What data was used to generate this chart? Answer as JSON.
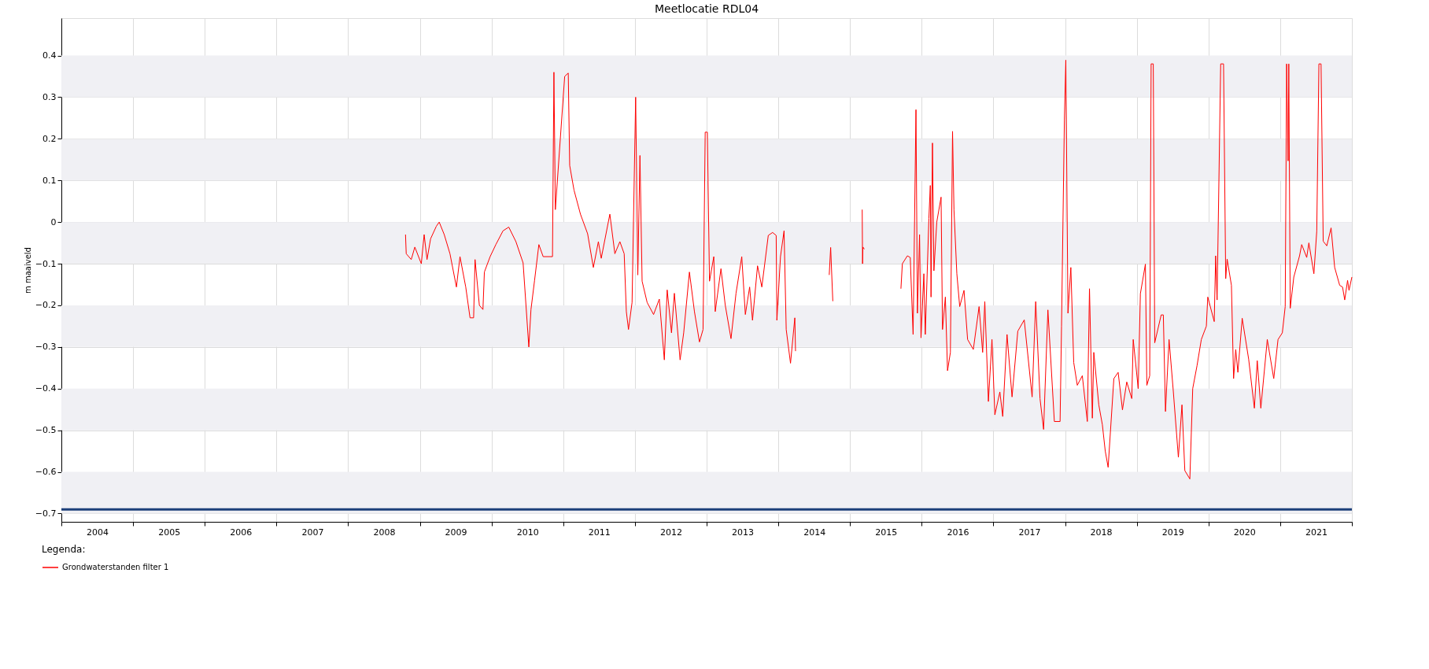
{
  "chart_data": {
    "type": "line",
    "title": "Meetlocatie RDL04",
    "ylabel": "m maaiveld",
    "legend_title": "Legenda:",
    "legend": "bottom left",
    "grid": true,
    "marker": "none",
    "line_style": "solid",
    "xlim": [
      2004,
      2022
    ],
    "xticks": [
      {
        "value": 2004,
        "label": null
      },
      {
        "value": 2004.5,
        "label": "2004"
      },
      {
        "value": 2005,
        "label": null
      },
      {
        "value": 2005.5,
        "label": "2005"
      },
      {
        "value": 2006,
        "label": null
      },
      {
        "value": 2006.5,
        "label": "2006"
      },
      {
        "value": 2007,
        "label": null
      },
      {
        "value": 2007.5,
        "label": "2007"
      },
      {
        "value": 2008,
        "label": null
      },
      {
        "value": 2008.5,
        "label": "2008"
      },
      {
        "value": 2009,
        "label": null
      },
      {
        "value": 2009.5,
        "label": "2009"
      },
      {
        "value": 2010,
        "label": null
      },
      {
        "value": 2010.5,
        "label": "2010"
      },
      {
        "value": 2011,
        "label": null
      },
      {
        "value": 2011.5,
        "label": "2011"
      },
      {
        "value": 2012,
        "label": null
      },
      {
        "value": 2012.5,
        "label": "2012"
      },
      {
        "value": 2013,
        "label": null
      },
      {
        "value": 2013.5,
        "label": "2013"
      },
      {
        "value": 2014,
        "label": null
      },
      {
        "value": 2014.5,
        "label": "2014"
      },
      {
        "value": 2015,
        "label": null
      },
      {
        "value": 2015.5,
        "label": "2015"
      },
      {
        "value": 2016,
        "label": null
      },
      {
        "value": 2016.5,
        "label": "2016"
      },
      {
        "value": 2017,
        "label": null
      },
      {
        "value": 2017.5,
        "label": "2017"
      },
      {
        "value": 2018,
        "label": null
      },
      {
        "value": 2018.5,
        "label": "2018"
      },
      {
        "value": 2019,
        "label": null
      },
      {
        "value": 2019.5,
        "label": "2019"
      },
      {
        "value": 2020,
        "label": null
      },
      {
        "value": 2020.5,
        "label": "2020"
      },
      {
        "value": 2021,
        "label": null
      },
      {
        "value": 2021.5,
        "label": "2021"
      },
      {
        "value": 2022,
        "label": null
      }
    ],
    "ylim": [
      -0.72,
      0.49
    ],
    "yticks": [
      -0.7,
      -0.6,
      -0.5,
      -0.4,
      -0.3,
      -0.2,
      -0.1,
      0,
      0.1,
      0.2,
      0.3,
      0.4
    ],
    "bands": [
      {
        "axis": "y",
        "from": 0.3,
        "to": 0.4,
        "color": "#f0f0f4"
      },
      {
        "axis": "y",
        "from": 0.1,
        "to": 0.2,
        "color": "#f0f0f4"
      },
      {
        "axis": "y",
        "from": -0.1,
        "to": 0,
        "color": "#f0f0f4"
      },
      {
        "axis": "y",
        "from": -0.3,
        "to": -0.2,
        "color": "#f0f0f4"
      },
      {
        "axis": "y",
        "from": -0.5,
        "to": -0.4,
        "color": "#f0f0f4"
      },
      {
        "axis": "y",
        "from": -0.7,
        "to": -0.6,
        "color": "#f0f0f4"
      }
    ],
    "ref_lines": [
      {
        "axis": "y",
        "value": -0.69,
        "color": "#1c3f7a",
        "line_style": "solid"
      }
    ],
    "series": [
      {
        "name": "Grondwaterstanden filter 1",
        "color": "#ff0000",
        "x": [
          2008.8,
          2008.81,
          2008.88,
          2008.93,
          2009.02,
          2009.06,
          2009.1,
          2009.15,
          2009.23,
          2009.27,
          2009.34,
          2009.42,
          2009.51,
          2009.56,
          2009.64,
          2009.7,
          2009.75,
          2009.77,
          2009.83,
          2009.88,
          2009.9,
          2009.98,
          2010.06,
          2010.16,
          2010.24,
          2010.34,
          2010.44,
          2010.52,
          2010.55,
          2010.6,
          2010.66,
          2010.72,
          2010.85,
          2010.87,
          2010.89,
          2011.02,
          2011.07,
          2011.09,
          2011.15,
          2011.24,
          2011.34,
          2011.42,
          2011.49,
          2011.53,
          2011.65,
          2011.72,
          2011.79,
          2011.85,
          2011.88,
          2011.91,
          2011.96,
          2012.01,
          2012.04,
          2012.07,
          2012.1,
          2012.17,
          2012.26,
          2012.34,
          2012.41,
          2012.45,
          2012.51,
          2012.55,
          2012.63,
          2012.68,
          2012.76,
          2012.83,
          2012.9,
          2012.95,
          2012.98,
          2013.01,
          2013.04,
          2013.1,
          2013.12,
          2013.2,
          2013.26,
          2013.34,
          2013.41,
          2013.49,
          2013.54,
          2013.6,
          2013.64,
          2013.71,
          2013.77,
          2013.86,
          2013.92,
          2013.97,
          2013.98,
          2014.03,
          2014.08,
          2014.11,
          2014.17,
          2014.23,
          2014.24,
          2014.5,
          2014.71,
          2014.73,
          2014.76,
          2014.95,
          2015.17,
          2015.175,
          2015.18,
          2015.2,
          2015.45,
          2015.71,
          2015.73,
          2015.8,
          2015.84,
          2015.88,
          2015.92,
          2015.94,
          2015.97,
          2015.99,
          2016.03,
          2016.05,
          2016.1,
          2016.12,
          2016.13,
          2016.15,
          2016.17,
          2016.21,
          2016.27,
          2016.29,
          2016.33,
          2016.36,
          2016.4,
          2016.43,
          2016.45,
          2016.49,
          2016.53,
          2016.59,
          2016.64,
          2016.72,
          2016.8,
          2016.85,
          2016.88,
          2016.93,
          2016.98,
          2017.02,
          2017.09,
          2017.13,
          2017.19,
          2017.26,
          2017.34,
          2017.43,
          2017.54,
          2017.59,
          2017.65,
          2017.7,
          2017.76,
          2017.85,
          2017.93,
          2017.95,
          2017.99,
          2018.01,
          2018.04,
          2018.08,
          2018.12,
          2018.17,
          2018.24,
          2018.31,
          2018.34,
          2018.38,
          2018.4,
          2018.47,
          2018.52,
          2018.56,
          2018.6,
          2018.68,
          2018.74,
          2018.8,
          2018.86,
          2018.93,
          2018.95,
          2019.02,
          2019.05,
          2019.12,
          2019.14,
          2019.18,
          2019.2,
          2019.23,
          2019.25,
          2019.34,
          2019.37,
          2019.4,
          2019.45,
          2019.51,
          2019.58,
          2019.63,
          2019.67,
          2019.74,
          2019.78,
          2019.84,
          2019.9,
          2019.97,
          2019.99,
          2020.08,
          2020.1,
          2020.12,
          2020.17,
          2020.21,
          2020.24,
          2020.26,
          2020.32,
          2020.35,
          2020.38,
          2020.41,
          2020.47,
          2020.56,
          2020.64,
          2020.68,
          2020.73,
          2020.82,
          2020.91,
          2020.97,
          2021.03,
          2021.07,
          2021.09,
          2021.11,
          2021.12,
          2021.14,
          2021.19,
          2021.27,
          2021.3,
          2021.37,
          2021.4,
          2021.47,
          2021.51,
          2021.54,
          2021.57,
          2021.6,
          2021.65,
          2021.71,
          2021.76,
          2021.83,
          2021.87,
          2021.9,
          2021.94,
          2021.96,
          2022.0
        ],
        "values": [
          -0.03,
          -0.076,
          -0.09,
          -0.06,
          -0.1,
          -0.03,
          -0.09,
          -0.04,
          -0.01,
          0.0,
          -0.03,
          -0.076,
          -0.156,
          -0.083,
          -0.156,
          -0.23,
          -0.23,
          -0.09,
          -0.2,
          -0.21,
          -0.12,
          -0.083,
          -0.054,
          -0.021,
          -0.012,
          -0.047,
          -0.098,
          -0.3,
          -0.21,
          -0.14,
          -0.054,
          -0.083,
          -0.083,
          0.36,
          0.03,
          0.35,
          0.358,
          0.136,
          0.077,
          0.019,
          -0.028,
          -0.109,
          -0.047,
          -0.087,
          0.019,
          -0.076,
          -0.047,
          -0.076,
          -0.215,
          -0.258,
          -0.193,
          0.3,
          -0.127,
          0.16,
          -0.142,
          -0.193,
          -0.222,
          -0.185,
          -0.331,
          -0.163,
          -0.266,
          -0.171,
          -0.331,
          -0.266,
          -0.12,
          -0.215,
          -0.288,
          -0.258,
          0.216,
          0.216,
          -0.142,
          -0.083,
          -0.215,
          -0.112,
          -0.2,
          -0.28,
          -0.171,
          -0.083,
          -0.222,
          -0.156,
          -0.236,
          -0.105,
          -0.156,
          -0.032,
          -0.025,
          -0.032,
          -0.236,
          -0.083,
          -0.021,
          -0.258,
          -0.339,
          -0.23,
          -0.31,
          null,
          -0.127,
          -0.061,
          -0.19,
          null,
          0.03,
          -0.1,
          -0.06,
          -0.065,
          null,
          -0.16,
          -0.1,
          -0.081,
          -0.085,
          -0.27,
          0.27,
          -0.219,
          -0.03,
          -0.278,
          -0.124,
          -0.27,
          0.009,
          0.088,
          -0.18,
          0.19,
          -0.117,
          0.0,
          0.06,
          -0.258,
          -0.18,
          -0.357,
          -0.313,
          0.218,
          0.029,
          -0.124,
          -0.203,
          -0.164,
          -0.282,
          -0.306,
          -0.203,
          -0.313,
          -0.191,
          -0.431,
          -0.282,
          -0.463,
          -0.408,
          -0.467,
          -0.27,
          -0.42,
          -0.262,
          -0.235,
          -0.42,
          -0.191,
          -0.424,
          -0.498,
          -0.211,
          -0.479,
          -0.479,
          -0.25,
          0.246,
          0.389,
          -0.219,
          -0.109,
          -0.337,
          -0.392,
          -0.369,
          -0.479,
          -0.16,
          -0.471,
          -0.313,
          -0.439,
          -0.487,
          -0.55,
          -0.589,
          -0.376,
          -0.361,
          -0.451,
          -0.384,
          -0.424,
          -0.282,
          -0.4,
          -0.172,
          -0.101,
          -0.392,
          -0.369,
          0.38,
          0.38,
          -0.29,
          -0.223,
          -0.223,
          -0.455,
          -0.282,
          -0.408,
          -0.565,
          -0.439,
          -0.597,
          -0.617,
          -0.4,
          -0.345,
          -0.282,
          -0.25,
          -0.18,
          -0.239,
          -0.081,
          -0.187,
          0.38,
          0.38,
          -0.136,
          -0.089,
          -0.152,
          -0.376,
          -0.306,
          -0.361,
          -0.231,
          -0.329,
          -0.447,
          -0.333,
          -0.447,
          -0.282,
          -0.376,
          -0.282,
          -0.266,
          -0.203,
          0.38,
          0.147,
          0.38,
          -0.207,
          -0.132,
          -0.081,
          -0.054,
          -0.085,
          -0.05,
          -0.124,
          -0.022,
          0.38,
          0.38,
          -0.046,
          -0.057,
          -0.014,
          -0.109,
          -0.152,
          -0.156,
          -0.187,
          -0.14,
          -0.164,
          -0.132
        ]
      }
    ]
  }
}
